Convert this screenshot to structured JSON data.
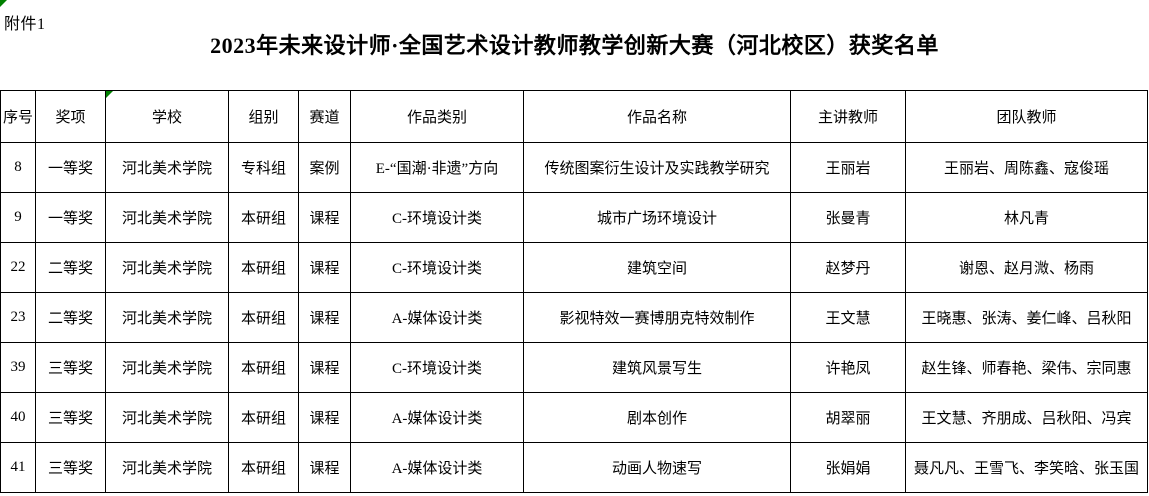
{
  "attachment_label": "附件1",
  "title": "2023年未来设计师·全国艺术设计教师教学创新大赛（河北校区）获奖名单",
  "flag_color": "#008000",
  "table": {
    "columns": [
      "序号",
      "奖项",
      "学校",
      "组别",
      "赛道",
      "作品类别",
      "作品名称",
      "主讲教师",
      "团队教师"
    ],
    "rows": [
      [
        "8",
        "一等奖",
        "河北美术学院",
        "专科组",
        "案例",
        "E-“国潮·非遗”方向",
        "传统图案衍生设计及实践教学研究",
        "王丽岩",
        "王丽岩、周陈鑫、寇俊瑶"
      ],
      [
        "9",
        "一等奖",
        "河北美术学院",
        "本研组",
        "课程",
        "C-环境设计类",
        "城市广场环境设计",
        "张曼青",
        "林凡青"
      ],
      [
        "22",
        "二等奖",
        "河北美术学院",
        "本研组",
        "课程",
        "C-环境设计类",
        "建筑空间",
        "赵梦丹",
        "谢恩、赵月溦、杨雨"
      ],
      [
        "23",
        "二等奖",
        "河北美术学院",
        "本研组",
        "课程",
        "A-媒体设计类",
        "影视特效一赛博朋克特效制作",
        "王文慧",
        "王晓惠、张涛、姜仁峰、吕秋阳"
      ],
      [
        "39",
        "三等奖",
        "河北美术学院",
        "本研组",
        "课程",
        "C-环境设计类",
        "建筑风景写生",
        "许艳凤",
        "赵生锋、师春艳、梁伟、宗同惠"
      ],
      [
        "40",
        "三等奖",
        "河北美术学院",
        "本研组",
        "课程",
        "A-媒体设计类",
        "剧本创作",
        "胡翠丽",
        "王文慧、齐朋成、吕秋阳、冯宾"
      ],
      [
        "41",
        "三等奖",
        "河北美术学院",
        "本研组",
        "课程",
        "A-媒体设计类",
        "动画人物速写",
        "张娟娟",
        "聂凡凡、王雪飞、李笑晗、张玉国"
      ]
    ]
  }
}
